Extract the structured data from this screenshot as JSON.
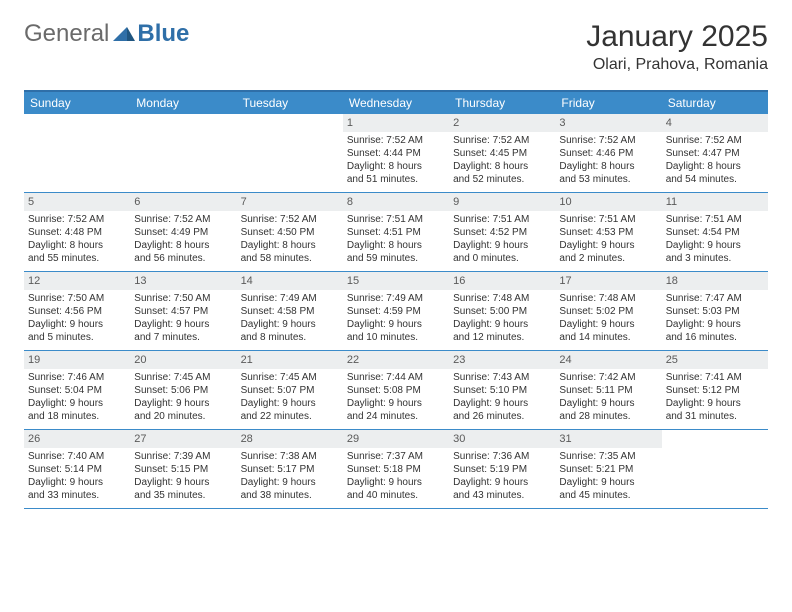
{
  "logo": {
    "general": "General",
    "blue": "Blue"
  },
  "title": "January 2025",
  "location": "Olari, Prahova, Romania",
  "colors": {
    "header_bg": "#3b8bc9",
    "header_text": "#ffffff",
    "border": "#3b8bc9",
    "daynum_bg": "#eceeef",
    "daynum_text": "#5a5a5a",
    "body_text": "#333333",
    "logo_gray": "#6a6a6a",
    "logo_blue": "#2f6fa8"
  },
  "weekdays": [
    "Sunday",
    "Monday",
    "Tuesday",
    "Wednesday",
    "Thursday",
    "Friday",
    "Saturday"
  ],
  "weeks": [
    [
      null,
      null,
      null,
      {
        "n": "1",
        "sr": "7:52 AM",
        "ss": "4:44 PM",
        "dl1": "Daylight: 8 hours",
        "dl2": "and 51 minutes."
      },
      {
        "n": "2",
        "sr": "7:52 AM",
        "ss": "4:45 PM",
        "dl1": "Daylight: 8 hours",
        "dl2": "and 52 minutes."
      },
      {
        "n": "3",
        "sr": "7:52 AM",
        "ss": "4:46 PM",
        "dl1": "Daylight: 8 hours",
        "dl2": "and 53 minutes."
      },
      {
        "n": "4",
        "sr": "7:52 AM",
        "ss": "4:47 PM",
        "dl1": "Daylight: 8 hours",
        "dl2": "and 54 minutes."
      }
    ],
    [
      {
        "n": "5",
        "sr": "7:52 AM",
        "ss": "4:48 PM",
        "dl1": "Daylight: 8 hours",
        "dl2": "and 55 minutes."
      },
      {
        "n": "6",
        "sr": "7:52 AM",
        "ss": "4:49 PM",
        "dl1": "Daylight: 8 hours",
        "dl2": "and 56 minutes."
      },
      {
        "n": "7",
        "sr": "7:52 AM",
        "ss": "4:50 PM",
        "dl1": "Daylight: 8 hours",
        "dl2": "and 58 minutes."
      },
      {
        "n": "8",
        "sr": "7:51 AM",
        "ss": "4:51 PM",
        "dl1": "Daylight: 8 hours",
        "dl2": "and 59 minutes."
      },
      {
        "n": "9",
        "sr": "7:51 AM",
        "ss": "4:52 PM",
        "dl1": "Daylight: 9 hours",
        "dl2": "and 0 minutes."
      },
      {
        "n": "10",
        "sr": "7:51 AM",
        "ss": "4:53 PM",
        "dl1": "Daylight: 9 hours",
        "dl2": "and 2 minutes."
      },
      {
        "n": "11",
        "sr": "7:51 AM",
        "ss": "4:54 PM",
        "dl1": "Daylight: 9 hours",
        "dl2": "and 3 minutes."
      }
    ],
    [
      {
        "n": "12",
        "sr": "7:50 AM",
        "ss": "4:56 PM",
        "dl1": "Daylight: 9 hours",
        "dl2": "and 5 minutes."
      },
      {
        "n": "13",
        "sr": "7:50 AM",
        "ss": "4:57 PM",
        "dl1": "Daylight: 9 hours",
        "dl2": "and 7 minutes."
      },
      {
        "n": "14",
        "sr": "7:49 AM",
        "ss": "4:58 PM",
        "dl1": "Daylight: 9 hours",
        "dl2": "and 8 minutes."
      },
      {
        "n": "15",
        "sr": "7:49 AM",
        "ss": "4:59 PM",
        "dl1": "Daylight: 9 hours",
        "dl2": "and 10 minutes."
      },
      {
        "n": "16",
        "sr": "7:48 AM",
        "ss": "5:00 PM",
        "dl1": "Daylight: 9 hours",
        "dl2": "and 12 minutes."
      },
      {
        "n": "17",
        "sr": "7:48 AM",
        "ss": "5:02 PM",
        "dl1": "Daylight: 9 hours",
        "dl2": "and 14 minutes."
      },
      {
        "n": "18",
        "sr": "7:47 AM",
        "ss": "5:03 PM",
        "dl1": "Daylight: 9 hours",
        "dl2": "and 16 minutes."
      }
    ],
    [
      {
        "n": "19",
        "sr": "7:46 AM",
        "ss": "5:04 PM",
        "dl1": "Daylight: 9 hours",
        "dl2": "and 18 minutes."
      },
      {
        "n": "20",
        "sr": "7:45 AM",
        "ss": "5:06 PM",
        "dl1": "Daylight: 9 hours",
        "dl2": "and 20 minutes."
      },
      {
        "n": "21",
        "sr": "7:45 AM",
        "ss": "5:07 PM",
        "dl1": "Daylight: 9 hours",
        "dl2": "and 22 minutes."
      },
      {
        "n": "22",
        "sr": "7:44 AM",
        "ss": "5:08 PM",
        "dl1": "Daylight: 9 hours",
        "dl2": "and 24 minutes."
      },
      {
        "n": "23",
        "sr": "7:43 AM",
        "ss": "5:10 PM",
        "dl1": "Daylight: 9 hours",
        "dl2": "and 26 minutes."
      },
      {
        "n": "24",
        "sr": "7:42 AM",
        "ss": "5:11 PM",
        "dl1": "Daylight: 9 hours",
        "dl2": "and 28 minutes."
      },
      {
        "n": "25",
        "sr": "7:41 AM",
        "ss": "5:12 PM",
        "dl1": "Daylight: 9 hours",
        "dl2": "and 31 minutes."
      }
    ],
    [
      {
        "n": "26",
        "sr": "7:40 AM",
        "ss": "5:14 PM",
        "dl1": "Daylight: 9 hours",
        "dl2": "and 33 minutes."
      },
      {
        "n": "27",
        "sr": "7:39 AM",
        "ss": "5:15 PM",
        "dl1": "Daylight: 9 hours",
        "dl2": "and 35 minutes."
      },
      {
        "n": "28",
        "sr": "7:38 AM",
        "ss": "5:17 PM",
        "dl1": "Daylight: 9 hours",
        "dl2": "and 38 minutes."
      },
      {
        "n": "29",
        "sr": "7:37 AM",
        "ss": "5:18 PM",
        "dl1": "Daylight: 9 hours",
        "dl2": "and 40 minutes."
      },
      {
        "n": "30",
        "sr": "7:36 AM",
        "ss": "5:19 PM",
        "dl1": "Daylight: 9 hours",
        "dl2": "and 43 minutes."
      },
      {
        "n": "31",
        "sr": "7:35 AM",
        "ss": "5:21 PM",
        "dl1": "Daylight: 9 hours",
        "dl2": "and 45 minutes."
      },
      null
    ]
  ],
  "labels": {
    "sunrise": "Sunrise:",
    "sunset": "Sunset:"
  }
}
